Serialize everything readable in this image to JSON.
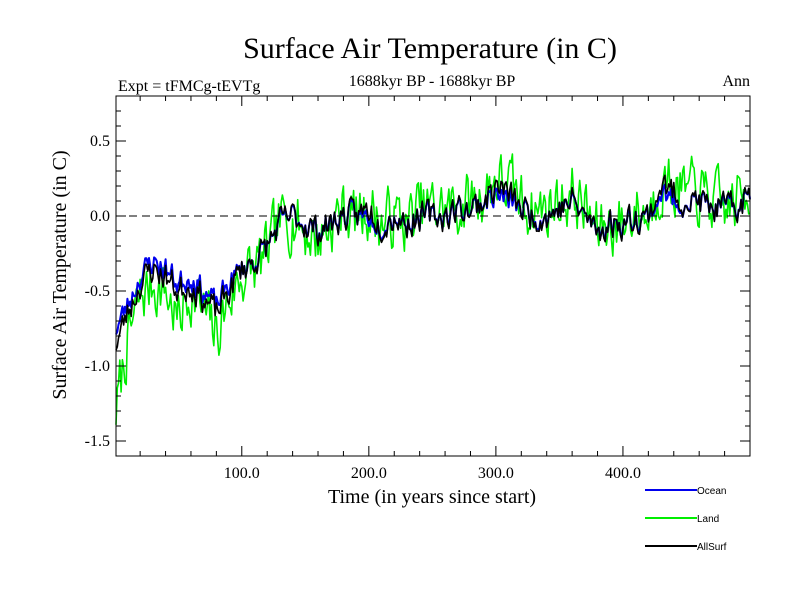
{
  "chart_data": {
    "type": "line",
    "title": "Surface Air Temperature (in C)",
    "subtitle_left": "Expt = tFMCg-tEVTg",
    "subtitle_center": "1688kyr BP - 1688kyr BP",
    "subtitle_right": "Ann",
    "xlabel": "Time (in years since start)",
    "ylabel": "Surface Air Temperature (in C)",
    "xlim": [
      1,
      500
    ],
    "ylim": [
      -1.6,
      0.8
    ],
    "xticks": [
      100,
      200,
      300,
      400
    ],
    "xtick_labels": [
      "100.0",
      "200.0",
      "300.0",
      "400.0"
    ],
    "yticks": [
      -1.5,
      -1.0,
      -0.5,
      0.0,
      0.5
    ],
    "ytick_labels": [
      "-1.5",
      "-1.0",
      "-0.5",
      "0.0",
      "0.5"
    ],
    "reference_line": 0.0,
    "legend_position": "bottom-right",
    "series": [
      {
        "name": "Land",
        "color": "#00ee00",
        "anchors": [
          [
            1,
            -1.3
          ],
          [
            10,
            -0.85
          ],
          [
            20,
            -0.55
          ],
          [
            30,
            -0.45
          ],
          [
            40,
            -0.5
          ],
          [
            50,
            -0.7
          ],
          [
            60,
            -0.5
          ],
          [
            70,
            -0.65
          ],
          [
            80,
            -0.8
          ],
          [
            90,
            -0.55
          ],
          [
            100,
            -0.4
          ],
          [
            110,
            -0.35
          ],
          [
            120,
            -0.25
          ],
          [
            130,
            -0.05
          ],
          [
            140,
            0.0
          ],
          [
            150,
            -0.1
          ],
          [
            160,
            -0.15
          ],
          [
            170,
            -0.05
          ],
          [
            180,
            0.05
          ],
          [
            190,
            0.0
          ],
          [
            200,
            0.05
          ],
          [
            210,
            -0.05
          ],
          [
            220,
            0.0
          ],
          [
            230,
            -0.05
          ],
          [
            240,
            0.05
          ],
          [
            250,
            0.05
          ],
          [
            260,
            0.05
          ],
          [
            270,
            0.05
          ],
          [
            280,
            0.1
          ],
          [
            290,
            0.15
          ],
          [
            300,
            0.25
          ],
          [
            310,
            0.2
          ],
          [
            320,
            0.1
          ],
          [
            330,
            0.05
          ],
          [
            340,
            0.05
          ],
          [
            350,
            0.1
          ],
          [
            360,
            0.15
          ],
          [
            370,
            0.05
          ],
          [
            380,
            -0.1
          ],
          [
            390,
            -0.05
          ],
          [
            400,
            -0.05
          ],
          [
            410,
            0.05
          ],
          [
            420,
            0.0
          ],
          [
            430,
            0.25
          ],
          [
            440,
            0.2
          ],
          [
            450,
            0.15
          ],
          [
            460,
            0.15
          ],
          [
            470,
            0.1
          ],
          [
            480,
            0.05
          ],
          [
            490,
            0.1
          ],
          [
            500,
            0.2
          ]
        ],
        "amplitude": 0.32,
        "seed": 7
      },
      {
        "name": "Ocean",
        "color": "#0000ee",
        "anchors": [
          [
            1,
            -0.75
          ],
          [
            10,
            -0.6
          ],
          [
            20,
            -0.4
          ],
          [
            30,
            -0.3
          ],
          [
            40,
            -0.35
          ],
          [
            50,
            -0.45
          ],
          [
            60,
            -0.4
          ],
          [
            70,
            -0.5
          ],
          [
            80,
            -0.6
          ],
          [
            90,
            -0.45
          ],
          [
            100,
            -0.35
          ],
          [
            110,
            -0.3
          ],
          [
            120,
            -0.2
          ],
          [
            130,
            -0.05
          ],
          [
            140,
            0.0
          ],
          [
            150,
            -0.05
          ],
          [
            160,
            -0.1
          ],
          [
            170,
            -0.05
          ],
          [
            180,
            0.0
          ],
          [
            190,
            0.0
          ],
          [
            200,
            0.0
          ],
          [
            210,
            -0.05
          ],
          [
            220,
            0.0
          ],
          [
            230,
            -0.05
          ],
          [
            240,
            0.0
          ],
          [
            250,
            0.0
          ],
          [
            260,
            0.0
          ],
          [
            270,
            0.05
          ],
          [
            280,
            0.05
          ],
          [
            290,
            0.1
          ],
          [
            300,
            0.15
          ],
          [
            310,
            0.1
          ],
          [
            320,
            0.05
          ],
          [
            330,
            0.0
          ],
          [
            340,
            0.0
          ],
          [
            350,
            0.05
          ],
          [
            360,
            0.1
          ],
          [
            370,
            0.0
          ],
          [
            380,
            -0.1
          ],
          [
            390,
            -0.05
          ],
          [
            400,
            -0.05
          ],
          [
            410,
            0.0
          ],
          [
            420,
            0.0
          ],
          [
            430,
            0.15
          ],
          [
            440,
            0.1
          ],
          [
            450,
            0.1
          ],
          [
            460,
            0.1
          ],
          [
            470,
            0.05
          ],
          [
            480,
            0.05
          ],
          [
            490,
            0.05
          ],
          [
            500,
            0.15
          ]
        ],
        "amplitude": 0.14,
        "seed": 23
      },
      {
        "name": "AllSurf",
        "color": "#000000",
        "anchors": [
          [
            1,
            -0.85
          ],
          [
            10,
            -0.65
          ],
          [
            20,
            -0.45
          ],
          [
            30,
            -0.35
          ],
          [
            40,
            -0.4
          ],
          [
            50,
            -0.5
          ],
          [
            60,
            -0.45
          ],
          [
            70,
            -0.55
          ],
          [
            80,
            -0.65
          ],
          [
            90,
            -0.5
          ],
          [
            100,
            -0.35
          ],
          [
            110,
            -0.3
          ],
          [
            120,
            -0.2
          ],
          [
            130,
            -0.05
          ],
          [
            140,
            0.0
          ],
          [
            150,
            -0.05
          ],
          [
            160,
            -0.1
          ],
          [
            170,
            -0.05
          ],
          [
            180,
            0.0
          ],
          [
            190,
            0.0
          ],
          [
            200,
            0.05
          ],
          [
            210,
            -0.05
          ],
          [
            220,
            0.0
          ],
          [
            230,
            -0.05
          ],
          [
            240,
            0.0
          ],
          [
            250,
            0.0
          ],
          [
            260,
            0.0
          ],
          [
            270,
            0.05
          ],
          [
            280,
            0.05
          ],
          [
            290,
            0.1
          ],
          [
            300,
            0.2
          ],
          [
            310,
            0.15
          ],
          [
            320,
            0.05
          ],
          [
            330,
            0.0
          ],
          [
            340,
            0.0
          ],
          [
            350,
            0.05
          ],
          [
            360,
            0.1
          ],
          [
            370,
            0.0
          ],
          [
            380,
            -0.1
          ],
          [
            390,
            -0.05
          ],
          [
            400,
            -0.05
          ],
          [
            410,
            0.0
          ],
          [
            420,
            0.0
          ],
          [
            430,
            0.2
          ],
          [
            440,
            0.15
          ],
          [
            450,
            0.1
          ],
          [
            460,
            0.1
          ],
          [
            470,
            0.05
          ],
          [
            480,
            0.05
          ],
          [
            490,
            0.05
          ],
          [
            500,
            0.15
          ]
        ],
        "amplitude": 0.16,
        "seed": 23
      }
    ]
  }
}
